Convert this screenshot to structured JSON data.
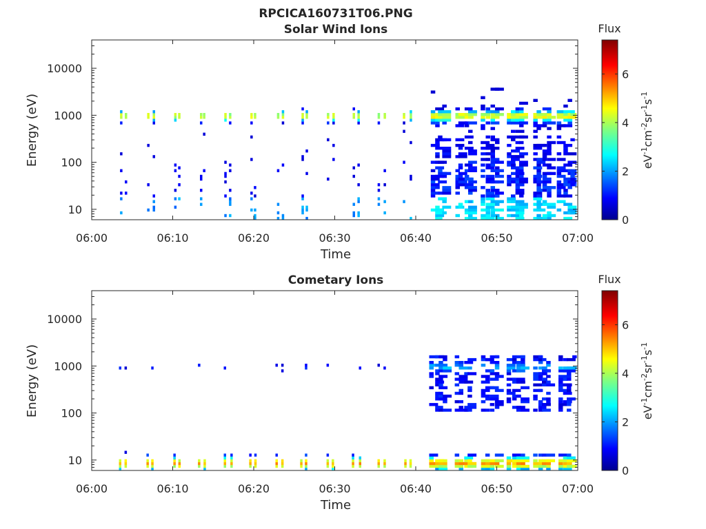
{
  "figure_title": "RPCICA160731T06.PNG",
  "colormap": [
    "#00008f",
    "#0000ff",
    "#0080ff",
    "#00ffff",
    "#80ff80",
    "#ffff00",
    "#ff8000",
    "#ff0000",
    "#800000"
  ],
  "chart_data": [
    {
      "type": "heatmap",
      "title": "Solar Wind Ions",
      "xlabel": "Time",
      "ylabel": "Energy (eV)",
      "x_tick_labels": [
        "06:00",
        "06:10",
        "06:20",
        "06:30",
        "06:40",
        "06:50",
        "07:00"
      ],
      "xlim": [
        "06:00",
        "07:00"
      ],
      "y_scale": "log",
      "ylim": [
        6,
        40000
      ],
      "y_tick_labels": [
        "10",
        "100",
        "1000",
        "10000"
      ],
      "colorbar": {
        "title": "Flux",
        "label": "eV-1cm-2sr-1s-1",
        "tick_labels": [
          "0",
          "2",
          "4",
          "6"
        ],
        "range": [
          0,
          7.4
        ]
      },
      "peak_energy_eV": 900,
      "sweep_times_min": [
        4.2,
        7.6,
        10.8,
        14.0,
        17.2,
        20.2,
        23.5,
        26.6,
        29.8,
        33.0,
        36.1,
        39.3,
        42.5,
        45.6,
        48.8,
        52.0,
        55.2,
        58.3
      ],
      "grid": false
    },
    {
      "type": "heatmap",
      "title": "Cometary Ions",
      "xlabel": "Time",
      "ylabel": "Energy (eV)",
      "x_tick_labels": [
        "06:00",
        "06:10",
        "06:20",
        "06:30",
        "06:40",
        "06:50",
        "07:00"
      ],
      "xlim": [
        "06:00",
        "07:00"
      ],
      "y_scale": "log",
      "ylim": [
        6,
        40000
      ],
      "y_tick_labels": [
        "10",
        "100",
        "1000",
        "10000"
      ],
      "colorbar": {
        "title": "Flux",
        "label": "eV-1cm-2sr-1s-1",
        "tick_labels": [
          "0",
          "2",
          "4",
          "6"
        ],
        "range": [
          0,
          7.4
        ]
      },
      "peak_energy_eV": 8,
      "sweep_times_min": [
        4.2,
        7.6,
        10.8,
        14.0,
        17.2,
        20.2,
        23.5,
        26.6,
        29.8,
        33.0,
        36.1,
        39.3,
        42.5,
        45.6,
        48.8,
        52.0,
        55.2,
        58.3
      ],
      "grid": false
    }
  ]
}
